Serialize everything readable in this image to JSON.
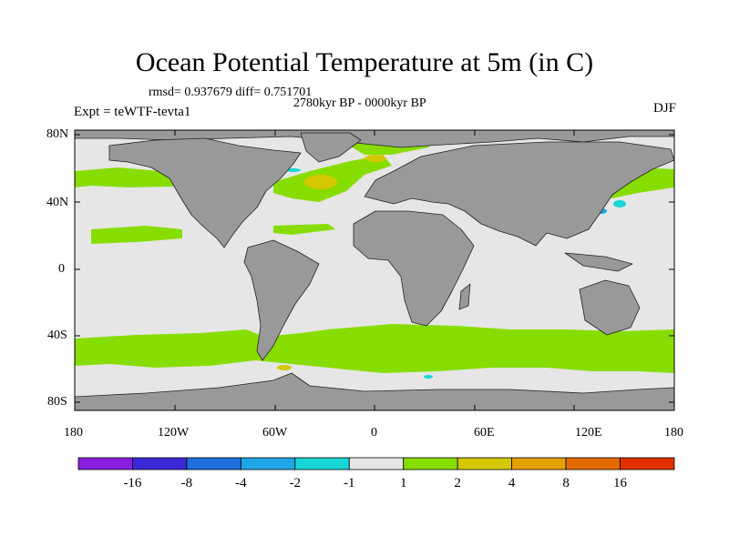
{
  "figure": {
    "title": "Ocean Potential Temperature at 5m (in C)",
    "stats": "rmsd= 0.937679 diff= 0.751701",
    "period": "2780kyr BP - 0000kyr BP",
    "experiment": "Expt = teWTF-tevta1",
    "season": "DJF"
  },
  "axes": {
    "lat_ticks": [
      "80N",
      "40N",
      "0",
      "40S",
      "80S"
    ],
    "lon_ticks": [
      "180",
      "120W",
      "60W",
      "0",
      "60E",
      "120E",
      "180"
    ]
  },
  "colorbar": {
    "labels": [
      "-16",
      "-8",
      "-4",
      "-2",
      "-1",
      "1",
      "2",
      "4",
      "8",
      "16"
    ],
    "colors": [
      "#8a1ee0",
      "#3a28d8",
      "#1f6fdc",
      "#1ea6e6",
      "#17d6d6",
      "#e6e6e6",
      "#88dd00",
      "#d4c800",
      "#e5a000",
      "#e56a00",
      "#e23000"
    ]
  },
  "map_colors": {
    "land": "#999999",
    "ocean_neutral": "#e6e6e6",
    "warm_1_2": "#88dd00",
    "warm_2_4": "#d4c800",
    "cool_minus2_minus1": "#17d6d6",
    "cool_minus4_minus2": "#1ea6e6"
  }
}
